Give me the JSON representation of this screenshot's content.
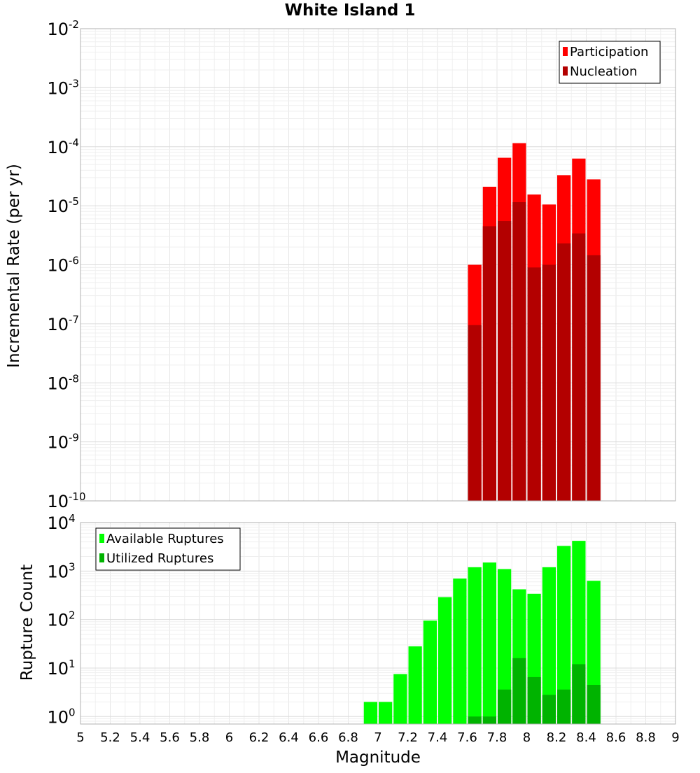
{
  "chart_data": [
    {
      "type": "bar",
      "title": "White Island 1",
      "xlabel": "",
      "ylabel": "Incremental Rate (per yr)",
      "xlim": [
        5,
        9
      ],
      "ylim": [
        1e-10,
        0.01
      ],
      "yscale": "log",
      "y_tick_exponents": [
        "-2",
        "-3",
        "-4",
        "-5",
        "-6",
        "-7",
        "-8",
        "-9",
        "-10"
      ],
      "y_tick_base": "10",
      "grid": true,
      "legend_position": "top-right",
      "bin_width": 0.1,
      "x": [
        7.65,
        7.75,
        7.85,
        7.95,
        8.05,
        8.15,
        8.25,
        8.35,
        8.45
      ],
      "series": [
        {
          "name": "Participation",
          "color": "#ff0000",
          "values": [
            1e-06,
            2.1e-05,
            6.5e-05,
            0.000115,
            1.55e-05,
            1.05e-05,
            3.3e-05,
            6.3e-05,
            2.8e-05
          ]
        },
        {
          "name": "Nucleation",
          "color": "#b30000",
          "values": [
            9.5e-08,
            4.5e-06,
            5.5e-06,
            1.15e-05,
            9e-07,
            1e-06,
            2.3e-06,
            3.4e-06,
            1.45e-06
          ]
        }
      ]
    },
    {
      "type": "bar",
      "title": "",
      "xlabel": "Magnitude",
      "ylabel": "Rupture Count",
      "xlim": [
        5,
        9
      ],
      "ylim": [
        0.7,
        10000.0
      ],
      "yscale": "log",
      "y_tick_exponents": [
        "4",
        "3",
        "2",
        "1",
        "0"
      ],
      "y_tick_base": "10",
      "x_tick_labels": [
        "5",
        "5.2",
        "5.4",
        "5.6",
        "5.8",
        "6",
        "6.2",
        "6.4",
        "6.6",
        "6.8",
        "7",
        "7.2",
        "7.4",
        "7.6",
        "7.8",
        "8",
        "8.2",
        "8.4",
        "8.6",
        "8.8",
        "9"
      ],
      "grid": true,
      "legend_position": "top-left",
      "bin_width": 0.1,
      "series": [
        {
          "name": "Available Ruptures",
          "color": "#00ff00",
          "x": [
            6.95,
            7.05,
            7.15,
            7.25,
            7.35,
            7.45,
            7.55,
            7.65,
            7.75,
            7.85,
            7.95,
            8.05,
            8.15,
            8.25,
            8.35,
            8.45
          ],
          "values": [
            2,
            2,
            7.5,
            28,
            95,
            290,
            700,
            1200,
            1500,
            1100,
            420,
            340,
            1200,
            3300,
            4200,
            630
          ]
        },
        {
          "name": "Utilized Ruptures",
          "color": "#00b300",
          "x": [
            7.65,
            7.75,
            7.85,
            7.95,
            8.05,
            8.15,
            8.25,
            8.35,
            8.45
          ],
          "values": [
            1,
            1,
            3.6,
            16,
            6.5,
            2.8,
            3.6,
            12,
            4.5
          ]
        }
      ]
    }
  ]
}
